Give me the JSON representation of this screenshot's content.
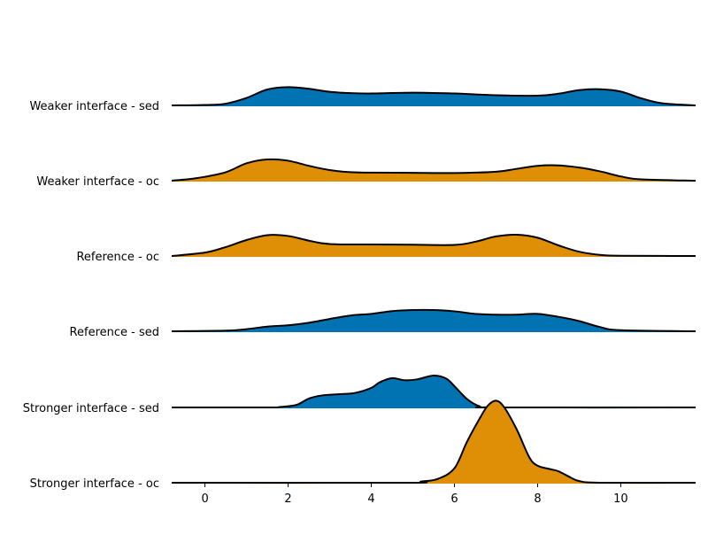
{
  "chart_data": {
    "type": "area",
    "title": "",
    "xlabel": "",
    "ylabel": "",
    "xlim": [
      -0.8,
      11.8
    ],
    "x_ticks": [
      0,
      2,
      4,
      6,
      8,
      10
    ],
    "grid": false,
    "colors": {
      "sed": "#0173b2",
      "oc": "#de8f05"
    },
    "series": [
      {
        "name": "Weaker interface - sed",
        "color_key": "sed",
        "points": [
          [
            -0.8,
            0.0
          ],
          [
            0.0,
            0.02
          ],
          [
            0.5,
            0.08
          ],
          [
            1.0,
            0.35
          ],
          [
            1.5,
            0.75
          ],
          [
            2.0,
            0.86
          ],
          [
            2.5,
            0.78
          ],
          [
            3.0,
            0.64
          ],
          [
            3.5,
            0.58
          ],
          [
            4.0,
            0.56
          ],
          [
            5.0,
            0.6
          ],
          [
            6.0,
            0.56
          ],
          [
            7.0,
            0.48
          ],
          [
            8.0,
            0.46
          ],
          [
            8.5,
            0.55
          ],
          [
            9.0,
            0.72
          ],
          [
            9.5,
            0.76
          ],
          [
            10.0,
            0.65
          ],
          [
            10.5,
            0.33
          ],
          [
            11.0,
            0.1
          ],
          [
            11.8,
            0.0
          ]
        ]
      },
      {
        "name": "Weaker interface - oc",
        "color_key": "oc",
        "points": [
          [
            -0.8,
            0.0
          ],
          [
            -0.2,
            0.12
          ],
          [
            0.5,
            0.4
          ],
          [
            1.0,
            0.82
          ],
          [
            1.5,
            1.0
          ],
          [
            2.0,
            0.94
          ],
          [
            2.5,
            0.7
          ],
          [
            3.0,
            0.5
          ],
          [
            3.5,
            0.4
          ],
          [
            4.0,
            0.38
          ],
          [
            5.0,
            0.37
          ],
          [
            6.0,
            0.36
          ],
          [
            7.0,
            0.42
          ],
          [
            7.5,
            0.56
          ],
          [
            8.0,
            0.7
          ],
          [
            8.5,
            0.72
          ],
          [
            9.0,
            0.62
          ],
          [
            9.5,
            0.44
          ],
          [
            10.0,
            0.2
          ],
          [
            10.5,
            0.06
          ],
          [
            11.8,
            0.0
          ]
        ]
      },
      {
        "name": "Reference - oc",
        "color_key": "oc",
        "points": [
          [
            -0.8,
            0.0
          ],
          [
            0.0,
            0.16
          ],
          [
            0.5,
            0.42
          ],
          [
            1.0,
            0.75
          ],
          [
            1.5,
            0.98
          ],
          [
            2.0,
            0.94
          ],
          [
            2.5,
            0.72
          ],
          [
            3.0,
            0.56
          ],
          [
            4.0,
            0.54
          ],
          [
            5.0,
            0.53
          ],
          [
            6.0,
            0.52
          ],
          [
            6.5,
            0.67
          ],
          [
            7.0,
            0.92
          ],
          [
            7.5,
            1.0
          ],
          [
            8.0,
            0.86
          ],
          [
            8.5,
            0.5
          ],
          [
            9.0,
            0.2
          ],
          [
            9.5,
            0.05
          ],
          [
            10.0,
            0.01
          ],
          [
            11.8,
            0.0
          ]
        ]
      },
      {
        "name": "Reference - sed",
        "color_key": "sed",
        "points": [
          [
            -0.8,
            0.0
          ],
          [
            0.5,
            0.03
          ],
          [
            1.0,
            0.1
          ],
          [
            1.5,
            0.22
          ],
          [
            2.0,
            0.28
          ],
          [
            2.5,
            0.4
          ],
          [
            3.0,
            0.58
          ],
          [
            3.5,
            0.74
          ],
          [
            4.0,
            0.82
          ],
          [
            4.5,
            0.95
          ],
          [
            5.0,
            1.0
          ],
          [
            5.5,
            1.0
          ],
          [
            6.0,
            0.94
          ],
          [
            6.5,
            0.82
          ],
          [
            7.0,
            0.78
          ],
          [
            7.5,
            0.78
          ],
          [
            8.0,
            0.82
          ],
          [
            8.5,
            0.68
          ],
          [
            9.0,
            0.48
          ],
          [
            9.5,
            0.2
          ],
          [
            10.0,
            0.05
          ],
          [
            11.8,
            0.0
          ]
        ]
      },
      {
        "name": "Stronger interface - sed",
        "color_key": "sed",
        "points": [
          [
            -0.8,
            0.0
          ],
          [
            1.5,
            0.0
          ],
          [
            1.8,
            0.02
          ],
          [
            2.2,
            0.12
          ],
          [
            2.5,
            0.42
          ],
          [
            2.8,
            0.56
          ],
          [
            3.2,
            0.62
          ],
          [
            3.6,
            0.68
          ],
          [
            4.0,
            0.92
          ],
          [
            4.2,
            1.18
          ],
          [
            4.5,
            1.38
          ],
          [
            4.8,
            1.28
          ],
          [
            5.1,
            1.32
          ],
          [
            5.5,
            1.5
          ],
          [
            5.8,
            1.36
          ],
          [
            6.0,
            1.0
          ],
          [
            6.3,
            0.4
          ],
          [
            6.6,
            0.06
          ],
          [
            7.0,
            0.0
          ],
          [
            11.8,
            0.0
          ]
        ]
      },
      {
        "name": "Stronger interface - oc",
        "color_key": "oc",
        "points": [
          [
            -0.8,
            0.0
          ],
          [
            4.8,
            0.0
          ],
          [
            5.2,
            0.06
          ],
          [
            5.6,
            0.18
          ],
          [
            6.0,
            0.68
          ],
          [
            6.3,
            1.92
          ],
          [
            6.6,
            3.0
          ],
          [
            6.8,
            3.62
          ],
          [
            7.0,
            3.86
          ],
          [
            7.2,
            3.54
          ],
          [
            7.5,
            2.5
          ],
          [
            7.8,
            1.2
          ],
          [
            8.0,
            0.8
          ],
          [
            8.3,
            0.64
          ],
          [
            8.5,
            0.54
          ],
          [
            8.8,
            0.24
          ],
          [
            9.0,
            0.08
          ],
          [
            9.5,
            0.0
          ],
          [
            11.8,
            0.0
          ]
        ]
      }
    ]
  }
}
